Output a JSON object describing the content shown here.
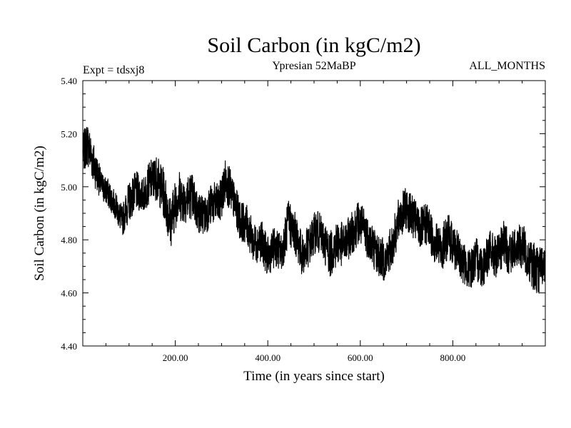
{
  "chart_data": {
    "type": "line",
    "title": "Soil Carbon (in kgC/m2)",
    "subtitle": "Ypresian  52MaBP",
    "left_label": "Expt = tdsxj8",
    "right_label": "ALL_MONTHS",
    "xlabel": "Time (in years since start)",
    "ylabel": "Soil Carbon (in kgC/m2)",
    "xlim": [
      0,
      1000
    ],
    "ylim": [
      4.4,
      5.4
    ],
    "x_ticks": [
      200,
      400,
      600,
      800
    ],
    "x_tick_labels": [
      "200.00",
      "400.00",
      "600.00",
      "800.00"
    ],
    "y_ticks": [
      4.4,
      4.6,
      4.8,
      5.0,
      5.2,
      5.4
    ],
    "y_tick_labels": [
      "4.40",
      "4.60",
      "4.80",
      "5.00",
      "5.20",
      "5.40"
    ],
    "grid": false,
    "line_color": "#000000",
    "series": [
      {
        "name": "Soil Carbon",
        "envelope_x": [
          0,
          10,
          25,
          40,
          55,
          70,
          85,
          100,
          115,
          130,
          145,
          160,
          175,
          190,
          205,
          220,
          235,
          250,
          265,
          280,
          295,
          310,
          325,
          340,
          355,
          370,
          385,
          400,
          415,
          430,
          445,
          460,
          475,
          490,
          505,
          520,
          535,
          550,
          565,
          580,
          595,
          610,
          625,
          640,
          655,
          670,
          685,
          700,
          715,
          730,
          745,
          760,
          775,
          790,
          805,
          820,
          835,
          850,
          865,
          880,
          895,
          910,
          925,
          940,
          955,
          970,
          985,
          1000
        ],
        "envelope_high": [
          5.2,
          5.25,
          5.16,
          5.06,
          5.03,
          4.98,
          4.93,
          5.02,
          5.06,
          5.03,
          5.1,
          5.12,
          5.07,
          4.96,
          5.07,
          5.04,
          5.06,
          4.98,
          4.97,
          5.02,
          5.01,
          5.12,
          5.03,
          4.95,
          4.93,
          4.86,
          4.88,
          4.81,
          4.85,
          4.82,
          4.96,
          4.9,
          4.82,
          4.86,
          4.92,
          4.88,
          4.83,
          4.88,
          4.86,
          4.9,
          4.95,
          4.92,
          4.87,
          4.82,
          4.8,
          4.87,
          4.97,
          5.0,
          4.96,
          4.92,
          4.94,
          4.88,
          4.85,
          4.9,
          4.85,
          4.8,
          4.76,
          4.81,
          4.78,
          4.84,
          4.81,
          4.87,
          4.83,
          4.86,
          4.85,
          4.8,
          4.78,
          4.76
        ],
        "envelope_low": [
          5.05,
          5.08,
          5.0,
          4.95,
          4.92,
          4.88,
          4.81,
          4.87,
          4.91,
          4.9,
          4.94,
          4.95,
          4.88,
          4.77,
          4.87,
          4.86,
          4.88,
          4.82,
          4.82,
          4.86,
          4.85,
          4.94,
          4.88,
          4.8,
          4.78,
          4.71,
          4.72,
          4.66,
          4.7,
          4.68,
          4.78,
          4.74,
          4.66,
          4.7,
          4.76,
          4.72,
          4.66,
          4.7,
          4.7,
          4.74,
          4.78,
          4.75,
          4.7,
          4.66,
          4.64,
          4.7,
          4.8,
          4.84,
          4.8,
          4.76,
          4.78,
          4.71,
          4.68,
          4.73,
          4.68,
          4.64,
          4.61,
          4.64,
          4.62,
          4.68,
          4.65,
          4.7,
          4.66,
          4.7,
          4.68,
          4.62,
          4.59,
          4.65
        ]
      }
    ]
  }
}
